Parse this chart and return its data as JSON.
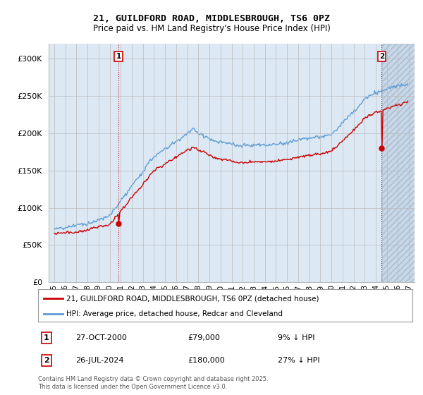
{
  "title1": "21, GUILDFORD ROAD, MIDDLESBROUGH, TS6 0PZ",
  "title2": "Price paid vs. HM Land Registry's House Price Index (HPI)",
  "legend1": "21, GUILDFORD ROAD, MIDDLESBROUGH, TS6 0PZ (detached house)",
  "legend2": "HPI: Average price, detached house, Redcar and Cleveland",
  "annotation1_date": "27-OCT-2000",
  "annotation1_price": 79000,
  "annotation1_pct": "9% ↓ HPI",
  "annotation2_date": "26-JUL-2024",
  "annotation2_price": 180000,
  "annotation2_pct": "27% ↓ HPI",
  "footer": "Contains HM Land Registry data © Crown copyright and database right 2025.\nThis data is licensed under the Open Government Licence v3.0.",
  "line_color_price": "#cc0000",
  "line_color_hpi": "#5b9bd5",
  "annotation_box_color": "#cc0000",
  "vline_color": "#cc0000",
  "grid_color": "#bbbbbb",
  "plot_bg_color": "#dce9f5",
  "hatch_bg_color": "#c8d8e8",
  "background_color": "#ffffff",
  "ylim": [
    0,
    320000
  ],
  "yticks": [
    0,
    50000,
    100000,
    150000,
    200000,
    250000,
    300000
  ],
  "xlim_start": 1994.5,
  "xlim_end": 2027.5,
  "hatch_start": 2024.58
}
